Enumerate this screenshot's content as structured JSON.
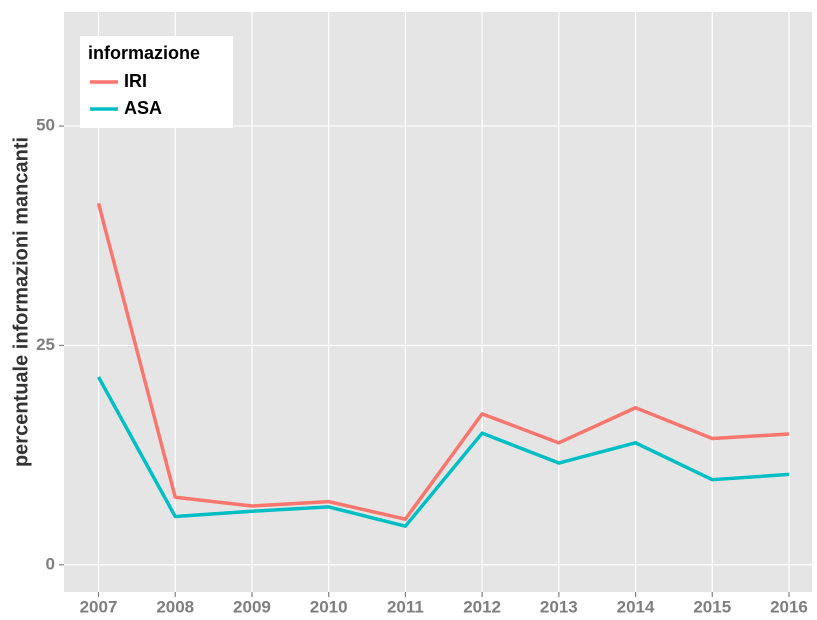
{
  "chart_data": {
    "type": "line",
    "y_label": "percentuale informazioni mancanti",
    "legend_title": "informazione",
    "legend_position": "top-left",
    "x": [
      2007,
      2008,
      2009,
      2010,
      2011,
      2012,
      2013,
      2014,
      2015,
      2016
    ],
    "series": [
      {
        "name": "IRI",
        "color": "#F8766D",
        "values": [
          41.2,
          7.7,
          6.7,
          7.2,
          5.2,
          17.2,
          13.9,
          17.9,
          14.4,
          14.9
        ]
      },
      {
        "name": "ASA",
        "color": "#00BFC4",
        "values": [
          21.4,
          5.5,
          6.1,
          6.6,
          4.4,
          15.0,
          11.6,
          13.9,
          9.7,
          10.3
        ]
      }
    ],
    "xlim": [
      2006.55,
      2016.3
    ],
    "xticks": [
      2007,
      2008,
      2009,
      2010,
      2011,
      2012,
      2013,
      2014,
      2015,
      2016
    ],
    "ylim": [
      -3.1,
      63
    ],
    "yticks": [
      0,
      25,
      50
    ],
    "grid": true
  }
}
